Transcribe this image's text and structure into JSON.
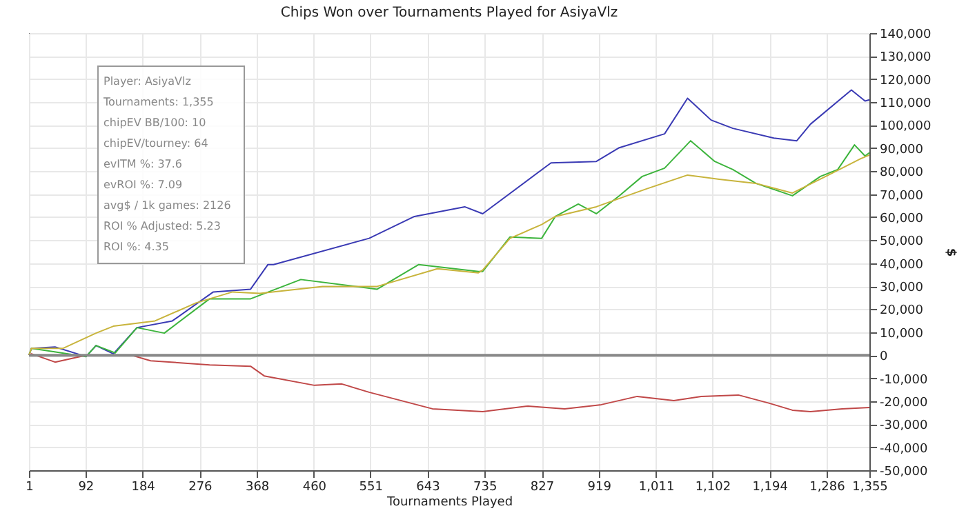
{
  "chart_data": {
    "type": "line",
    "title": "Chips Won over Tournaments Played for AsiyaVlz",
    "xlabel": "Tournaments Played",
    "ylabel": "$",
    "annotations": [
      "Player: AsiyaVlz",
      "Tournaments: 1,355",
      "chipEV BB/100: 10",
      "chipEV/tourney: 64",
      "evITM %: 37.6",
      "evROI %: 7.09",
      "avg$ / 1k games: 2126",
      "ROI % Adjusted: 5.23",
      "ROI %: 4.35"
    ],
    "series": [
      {
        "color": "#3a3ab4",
        "x": [
          1,
          5,
          43,
          93,
          109,
          137,
          175,
          232,
          298,
          358,
          386,
          395,
          549,
          622,
          703,
          732,
          842,
          915,
          952,
          1025,
          1062,
          1100,
          1135,
          1201,
          1238,
          1260,
          1326,
          1348,
          1355
        ],
        "values": [
          0,
          3000,
          3600,
          -600,
          4200,
          600,
          12000,
          14900,
          27500,
          28700,
          39400,
          39400,
          50800,
          60300,
          64500,
          61500,
          83600,
          84200,
          90200,
          96200,
          111700,
          102200,
          98600,
          94400,
          93200,
          100400,
          115300,
          110500,
          111000
        ]
      },
      {
        "color": "#3cb43c",
        "x": [
          1,
          5,
          93,
          109,
          140,
          175,
          219,
          292,
          358,
          439,
          562,
          629,
          725,
          732,
          776,
          827,
          849,
          886,
          915,
          952,
          989,
          1025,
          1067,
          1106,
          1135,
          1172,
          1231,
          1276,
          1304,
          1331,
          1348,
          1355
        ],
        "values": [
          0,
          3000,
          -600,
          4200,
          1000,
          12000,
          9600,
          24500,
          24500,
          32900,
          28700,
          39400,
          36400,
          36400,
          51400,
          50800,
          60300,
          65700,
          61500,
          69300,
          77700,
          81300,
          93200,
          84200,
          80700,
          74700,
          69300,
          77700,
          80700,
          91400,
          86600,
          88000
        ]
      },
      {
        "color": "#c8b43c",
        "x": [
          1,
          5,
          56,
          109,
          137,
          204,
          270,
          329,
          373,
          474,
          562,
          659,
          725,
          732,
          776,
          827,
          849,
          915,
          952,
          996,
          1062,
          1113,
          1172,
          1231,
          1289,
          1341,
          1355
        ],
        "values": [
          0,
          3000,
          3000,
          9600,
          12600,
          14900,
          22700,
          27500,
          26900,
          29900,
          29900,
          37600,
          35800,
          37000,
          50800,
          56800,
          60300,
          64500,
          68100,
          72300,
          78300,
          76500,
          74700,
          70500,
          78300,
          85400,
          87000
        ]
      },
      {
        "color": "#c04848",
        "x": [
          1,
          5,
          43,
          93,
          166,
          197,
          292,
          358,
          380,
          461,
          505,
          549,
          651,
          732,
          805,
          864,
          923,
          981,
          1040,
          1084,
          1144,
          1194,
          1231,
          1260,
          1311,
          1355
        ],
        "values": [
          0,
          600,
          -3000,
          0,
          0,
          -2400,
          -4200,
          -4800,
          -9000,
          -13100,
          -12500,
          -16100,
          -23300,
          -24500,
          -22100,
          -23300,
          -21500,
          -17900,
          -19700,
          -17900,
          -17300,
          -20900,
          -23900,
          -24500,
          -23300,
          -22700
        ]
      }
    ],
    "xlim": [
      1,
      1355
    ],
    "xticks": [
      1,
      92,
      184,
      276,
      368,
      460,
      551,
      643,
      735,
      827,
      919,
      {
        "value": 1011,
        "label": "1,011"
      },
      {
        "value": 1102,
        "label": "1,102"
      },
      {
        "value": 1194,
        "label": "1,194"
      },
      {
        "value": 1286,
        "label": "1,286"
      },
      {
        "value": 1355,
        "label": "1,355"
      }
    ],
    "ylim": [
      -50000,
      140000
    ],
    "yticks": [
      {
        "value": -50000,
        "label": "-50,000"
      },
      {
        "value": -40000,
        "label": "-40,000"
      },
      {
        "value": -30000,
        "label": "-30,000"
      },
      {
        "value": -20000,
        "label": "-20,000"
      },
      {
        "value": -10000,
        "label": "-10,000"
      },
      0,
      {
        "value": 10000,
        "label": "10,000"
      },
      {
        "value": 20000,
        "label": "20,000"
      },
      {
        "value": 30000,
        "label": "30,000"
      },
      {
        "value": 40000,
        "label": "40,000"
      },
      {
        "value": 50000,
        "label": "50,000"
      },
      {
        "value": 60000,
        "label": "60,000"
      },
      {
        "value": 70000,
        "label": "70,000"
      },
      {
        "value": 80000,
        "label": "80,000"
      },
      {
        "value": 90000,
        "label": "90,000"
      },
      {
        "value": 100000,
        "label": "100,000"
      },
      {
        "value": 110000,
        "label": "110,000"
      },
      {
        "value": 120000,
        "label": "120,000"
      },
      {
        "value": 130000,
        "label": "130,000"
      },
      {
        "value": 140000,
        "label": "140,000"
      }
    ],
    "ref_lines": [
      {
        "axis": "y",
        "value": 0,
        "color": "#888888"
      }
    ],
    "grid": true,
    "legend": false,
    "marker": "none",
    "line_style": "solid"
  }
}
